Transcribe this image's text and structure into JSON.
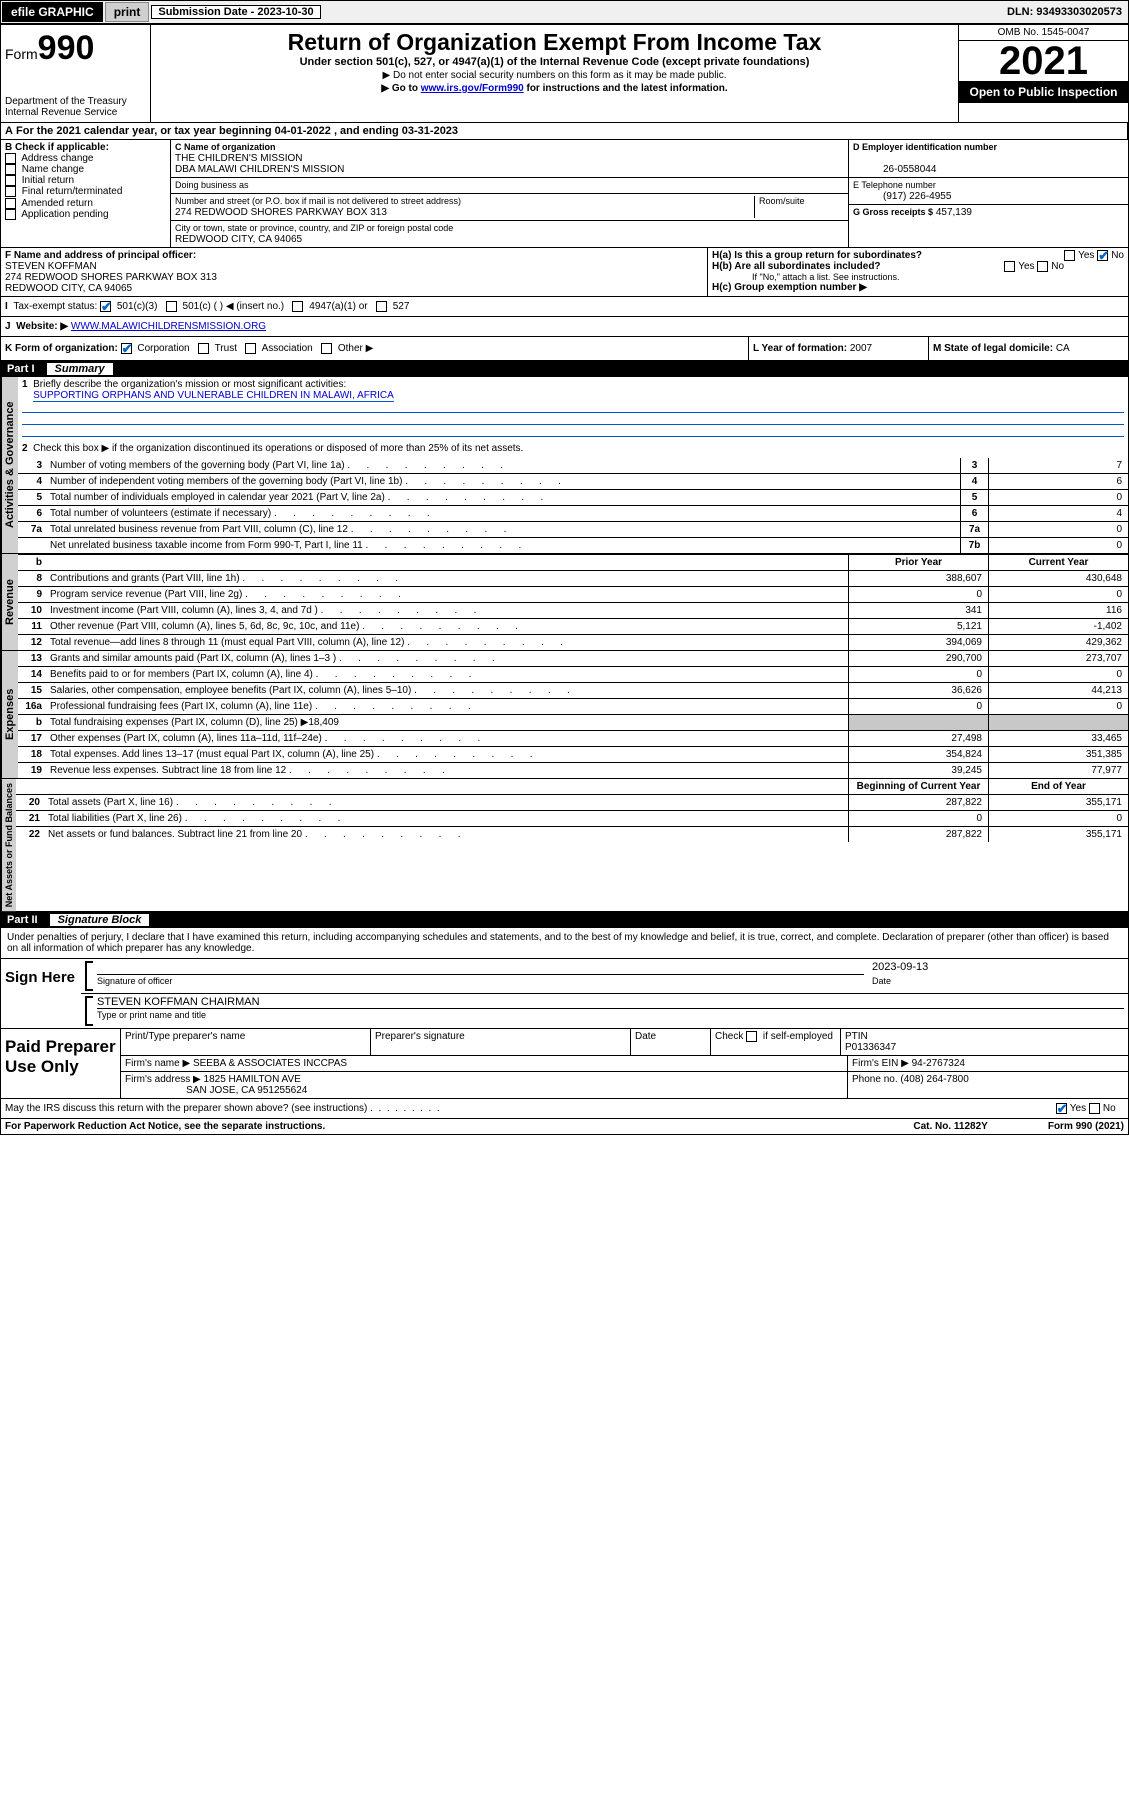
{
  "topbar": {
    "efile": "efile GRAPHIC",
    "print": "print",
    "sub_label": "Submission Date - 2023-10-30",
    "dln": "DLN: 93493303020573"
  },
  "header": {
    "form_word": "Form",
    "form_num": "990",
    "dept": "Department of the Treasury\nInternal Revenue Service",
    "title": "Return of Organization Exempt From Income Tax",
    "sub": "Under section 501(c), 527, or 4947(a)(1) of the Internal Revenue Code (except private foundations)",
    "note1": "▶ Do not enter social security numbers on this form as it may be made public.",
    "note2_pre": "▶ Go to ",
    "note2_link": "www.irs.gov/Form990",
    "note2_post": " for instructions and the latest information.",
    "omb": "OMB No. 1545-0047",
    "year": "2021",
    "inspect": "Open to Public Inspection"
  },
  "A": {
    "text": "For the 2021 calendar year, or tax year beginning 04-01-2022   , and ending 03-31-2023"
  },
  "B": {
    "label": "B Check if applicable:",
    "items": [
      "Address change",
      "Name change",
      "Initial return",
      "Final return/terminated",
      "Amended return",
      "Application pending"
    ]
  },
  "C": {
    "name_lbl": "C Name of organization",
    "name": "THE CHILDREN'S MISSION",
    "dba": "DBA MALAWI CHILDREN'S MISSION",
    "dba_lbl": "Doing business as",
    "addr_lbl": "Number and street (or P.O. box if mail is not delivered to street address)",
    "room_lbl": "Room/suite",
    "addr": "274 REDWOOD SHORES PARKWAY BOX 313",
    "city_lbl": "City or town, state or province, country, and ZIP or foreign postal code",
    "city": "REDWOOD CITY, CA  94065"
  },
  "D": {
    "lbl": "D Employer identification number",
    "val": "26-0558044"
  },
  "E": {
    "lbl": "E Telephone number",
    "val": "(917) 226-4955"
  },
  "G": {
    "lbl": "G Gross receipts $",
    "val": "457,139"
  },
  "F": {
    "lbl": "F Name and address of principal officer:",
    "name": "STEVEN KOFFMAN",
    "addr": "274 REDWOOD SHORES PARKWAY BOX 313",
    "city": "REDWOOD CITY, CA  94065"
  },
  "H": {
    "a": "H(a)  Is this a group return for subordinates?",
    "a_yes": "Yes",
    "a_no": "No",
    "b": "H(b)  Are all subordinates included?",
    "b_note": "If \"No,\" attach a list. See instructions.",
    "c": "H(c)  Group exemption number ▶"
  },
  "I": {
    "lbl": "Tax-exempt status:",
    "opts": [
      "501(c)(3)",
      "501(c) (  ) ◀ (insert no.)",
      "4947(a)(1) or",
      "527"
    ]
  },
  "J": {
    "lbl": "Website: ▶",
    "val": "WWW.MALAWICHILDRENSMISSION.ORG"
  },
  "K": {
    "lbl": "K Form of organization:",
    "opts": [
      "Corporation",
      "Trust",
      "Association",
      "Other ▶"
    ]
  },
  "L": {
    "lbl": "L Year of formation:",
    "val": "2007"
  },
  "M": {
    "lbl": "M State of legal domicile:",
    "val": "CA"
  },
  "part1": {
    "num": "Part I",
    "title": "Summary"
  },
  "summary": {
    "q1": "Briefly describe the organization's mission or most significant activities:",
    "q1a": "SUPPORTING ORPHANS AND VULNERABLE CHILDREN IN MALAWI, AFRICA",
    "q2": "Check this box ▶        if the organization discontinued its operations or disposed of more than 25% of its net assets.",
    "rows_gov": [
      {
        "n": "3",
        "t": "Number of voting members of the governing body (Part VI, line 1a)",
        "b": "3",
        "v": "7"
      },
      {
        "n": "4",
        "t": "Number of independent voting members of the governing body (Part VI, line 1b)",
        "b": "4",
        "v": "6"
      },
      {
        "n": "5",
        "t": "Total number of individuals employed in calendar year 2021 (Part V, line 2a)",
        "b": "5",
        "v": "0"
      },
      {
        "n": "6",
        "t": "Total number of volunteers (estimate if necessary)",
        "b": "6",
        "v": "4"
      },
      {
        "n": "7a",
        "t": "Total unrelated business revenue from Part VIII, column (C), line 12",
        "b": "7a",
        "v": "0"
      },
      {
        "n": "",
        "t": "Net unrelated business taxable income from Form 990-T, Part I, line 11",
        "b": "7b",
        "v": "0"
      }
    ],
    "col_prior": "Prior Year",
    "col_curr": "Current Year",
    "rev": [
      {
        "n": "8",
        "t": "Contributions and grants (Part VIII, line 1h)",
        "p": "388,607",
        "c": "430,648"
      },
      {
        "n": "9",
        "t": "Program service revenue (Part VIII, line 2g)",
        "p": "0",
        "c": "0"
      },
      {
        "n": "10",
        "t": "Investment income (Part VIII, column (A), lines 3, 4, and 7d )",
        "p": "341",
        "c": "116"
      },
      {
        "n": "11",
        "t": "Other revenue (Part VIII, column (A), lines 5, 6d, 8c, 9c, 10c, and 11e)",
        "p": "5,121",
        "c": "-1,402"
      },
      {
        "n": "12",
        "t": "Total revenue—add lines 8 through 11 (must equal Part VIII, column (A), line 12)",
        "p": "394,069",
        "c": "429,362"
      }
    ],
    "exp": [
      {
        "n": "13",
        "t": "Grants and similar amounts paid (Part IX, column (A), lines 1–3 )",
        "p": "290,700",
        "c": "273,707"
      },
      {
        "n": "14",
        "t": "Benefits paid to or for members (Part IX, column (A), line 4)",
        "p": "0",
        "c": "0"
      },
      {
        "n": "15",
        "t": "Salaries, other compensation, employee benefits (Part IX, column (A), lines 5–10)",
        "p": "36,626",
        "c": "44,213"
      },
      {
        "n": "16a",
        "t": "Professional fundraising fees (Part IX, column (A), line 11e)",
        "p": "0",
        "c": "0"
      },
      {
        "n": "b",
        "t": "Total fundraising expenses (Part IX, column (D), line 25) ▶18,409",
        "shade": true
      },
      {
        "n": "17",
        "t": "Other expenses (Part IX, column (A), lines 11a–11d, 11f–24e)",
        "p": "27,498",
        "c": "33,465"
      },
      {
        "n": "18",
        "t": "Total expenses. Add lines 13–17 (must equal Part IX, column (A), line 25)",
        "p": "354,824",
        "c": "351,385"
      },
      {
        "n": "19",
        "t": "Revenue less expenses. Subtract line 18 from line 12",
        "p": "39,245",
        "c": "77,977"
      }
    ],
    "na_hdr_p": "Beginning of Current Year",
    "na_hdr_c": "End of Year",
    "na": [
      {
        "n": "20",
        "t": "Total assets (Part X, line 16)",
        "p": "287,822",
        "c": "355,171"
      },
      {
        "n": "21",
        "t": "Total liabilities (Part X, line 26)",
        "p": "0",
        "c": "0"
      },
      {
        "n": "22",
        "t": "Net assets or fund balances. Subtract line 21 from line 20",
        "p": "287,822",
        "c": "355,171"
      }
    ],
    "tabs": {
      "gov": "Activities & Governance",
      "rev": "Revenue",
      "exp": "Expenses",
      "na": "Net Assets or Fund Balances"
    }
  },
  "part2": {
    "num": "Part II",
    "title": "Signature Block"
  },
  "sig": {
    "decl": "Under penalties of perjury, I declare that I have examined this return, including accompanying schedules and statements, and to the best of my knowledge and belief, it is true, correct, and complete. Declaration of preparer (other than officer) is based on all information of which preparer has any knowledge.",
    "sign_here": "Sign Here",
    "sig_of": "Signature of officer",
    "date_lbl": "Date",
    "date": "2023-09-13",
    "name": "STEVEN KOFFMAN  CHAIRMAN",
    "name_lbl": "Type or print name and title"
  },
  "prep": {
    "title": "Paid Preparer Use Only",
    "h1": "Print/Type preparer's name",
    "h2": "Preparer's signature",
    "h3": "Date",
    "h4_pre": "Check",
    "h4_post": "if self-employed",
    "ptin_lbl": "PTIN",
    "ptin": "P01336347",
    "firm_lbl": "Firm's name   ▶",
    "firm": "SEEBA & ASSOCIATES INCCPAS",
    "ein_lbl": "Firm's EIN ▶",
    "ein": "94-2767324",
    "addr_lbl": "Firm's address ▶",
    "addr1": "1825 HAMILTON AVE",
    "addr2": "SAN JOSE, CA  951255624",
    "phone_lbl": "Phone no.",
    "phone": "(408) 264-7800"
  },
  "discuss": {
    "q": "May the IRS discuss this return with the preparer shown above? (see instructions)",
    "yes": "Yes",
    "no": "No"
  },
  "footer": {
    "l": "For Paperwork Reduction Act Notice, see the separate instructions.",
    "m": "Cat. No. 11282Y",
    "r": "Form 990 (2021)"
  }
}
